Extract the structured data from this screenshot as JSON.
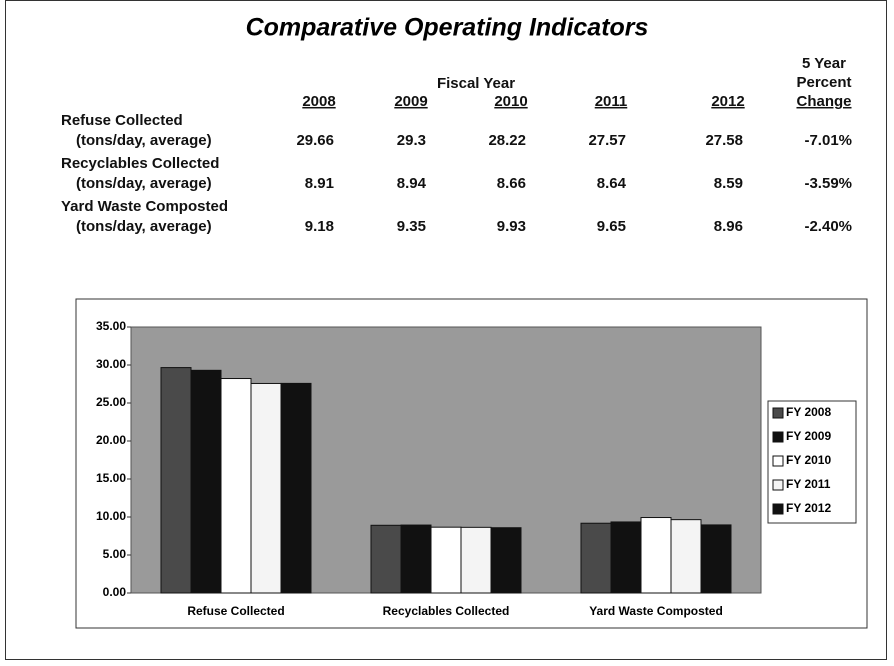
{
  "title": "Comparative Operating Indicators",
  "table": {
    "group_header": "Fiscal Year",
    "columns": [
      "2008",
      "2009",
      "2010",
      "2011",
      "2012"
    ],
    "change_header": [
      "5 Year",
      "Percent",
      "Change"
    ],
    "rows": [
      {
        "label": [
          "Refuse Collected",
          "(tons/day, average)"
        ],
        "values": [
          "29.66",
          "29.3",
          "28.22",
          "27.57",
          "27.58"
        ],
        "change": "-7.01%"
      },
      {
        "label": [
          "Recyclables Collected",
          "(tons/day, average)"
        ],
        "values": [
          "8.91",
          "8.94",
          "8.66",
          "8.64",
          "8.59"
        ],
        "change": "-3.59%"
      },
      {
        "label": [
          "Yard Waste Composted",
          "(tons/day, average)"
        ],
        "values": [
          "9.18",
          "9.35",
          "9.93",
          "9.65",
          "8.96"
        ],
        "change": "-2.40%"
      }
    ]
  },
  "chart_data": {
    "type": "bar",
    "categories": [
      "Refuse Collected",
      "Recyclables Collected",
      "Yard Waste Composted"
    ],
    "series": [
      {
        "name": "FY 2008",
        "color": "#4a4a4a",
        "values": [
          29.66,
          8.91,
          9.18
        ]
      },
      {
        "name": "FY 2009",
        "color": "#111111",
        "values": [
          29.3,
          8.94,
          9.35
        ]
      },
      {
        "name": "FY 2010",
        "color": "#ffffff",
        "values": [
          28.22,
          8.66,
          9.93
        ]
      },
      {
        "name": "FY 2011",
        "color": "#f4f4f4",
        "values": [
          27.57,
          8.64,
          9.65
        ]
      },
      {
        "name": "FY 2012",
        "color": "#111111",
        "values": [
          27.58,
          8.59,
          8.96
        ]
      }
    ],
    "ylim": [
      0,
      35
    ],
    "yticks": [
      {
        "value": 0,
        "label": "0.00"
      },
      {
        "value": 5,
        "label": "5.00"
      },
      {
        "value": 10,
        "label": "10.00"
      },
      {
        "value": 15,
        "label": "15.00"
      },
      {
        "value": 20,
        "label": "20.00"
      },
      {
        "value": 25,
        "label": "25.00"
      },
      {
        "value": 30,
        "label": "30.00"
      },
      {
        "value": 35,
        "label": "35.00"
      }
    ],
    "plot_background": "#9a9a9a",
    "legend": "right"
  }
}
